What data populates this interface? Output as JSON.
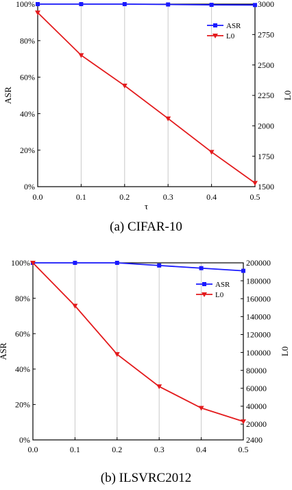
{
  "chart_data": [
    {
      "type": "line",
      "caption": "(a) CIFAR-10",
      "xlabel": "τ",
      "ylabel_left": "ASR",
      "ylabel_right": "L0",
      "x": [
        0.0,
        0.1,
        0.2,
        0.3,
        0.4,
        0.5
      ],
      "xlim": [
        0.0,
        0.5
      ],
      "x_ticks": [
        "0.0",
        "0.1",
        "0.2",
        "0.3",
        "0.4",
        "0.5"
      ],
      "ylim_left": [
        0,
        100
      ],
      "y_left_ticks": [
        0,
        20,
        40,
        60,
        80,
        100
      ],
      "y_left_tick_labels": [
        "0%",
        "20%",
        "40%",
        "60%",
        "80%",
        "100%"
      ],
      "ylim_right": [
        1500,
        3000
      ],
      "y_right_ticks": [
        1500,
        1750,
        2000,
        2250,
        2500,
        2750,
        3000
      ],
      "y_right_tick_labels": [
        "1500",
        "1750",
        "2000",
        "2250",
        "2500",
        "2750",
        "3000"
      ],
      "legend_position": "top-right",
      "series": [
        {
          "name": "ASR",
          "axis": "left",
          "color": "#1a1aff",
          "marker": "square",
          "values": [
            100,
            100,
            100,
            99.8,
            99.6,
            99.5
          ]
        },
        {
          "name": "L0",
          "axis": "right",
          "color": "#e31a1c",
          "marker": "triangle-down",
          "values": [
            2930,
            2580,
            2330,
            2060,
            1785,
            1530
          ]
        }
      ]
    },
    {
      "type": "line",
      "caption": "(b) ILSVRC2012",
      "xlabel": "τ",
      "ylabel_left": "ASR",
      "ylabel_right": "L0",
      "x": [
        0.0,
        0.1,
        0.2,
        0.3,
        0.4,
        0.5
      ],
      "xlim": [
        0.0,
        0.5
      ],
      "x_ticks": [
        "0.0",
        "0.1",
        "0.2",
        "0.3",
        "0.4",
        "0.5"
      ],
      "ylim_left": [
        0,
        100
      ],
      "y_left_ticks": [
        0,
        20,
        40,
        60,
        80,
        100
      ],
      "y_left_tick_labels": [
        "0%",
        "20%",
        "40%",
        "60%",
        "80%",
        "100%"
      ],
      "ylim_right": [
        2400,
        200000
      ],
      "y_right_ticks": [
        2400,
        20000,
        40000,
        60000,
        80000,
        100000,
        120000,
        140000,
        160000,
        180000,
        200000
      ],
      "y_right_tick_labels": [
        "2400",
        "20000",
        "40000",
        "60000",
        "80000",
        "100000",
        "120000",
        "140000",
        "160000",
        "180000",
        "200000"
      ],
      "legend_position": "top-right",
      "series": [
        {
          "name": "ASR",
          "axis": "left",
          "color": "#1a1aff",
          "marker": "square",
          "values": [
            100,
            100,
            100,
            98.5,
            97,
            95.5
          ]
        },
        {
          "name": "L0",
          "axis": "right",
          "color": "#e31a1c",
          "marker": "triangle-down",
          "values": [
            200000,
            152000,
            98000,
            62000,
            38000,
            23000
          ]
        }
      ]
    }
  ]
}
